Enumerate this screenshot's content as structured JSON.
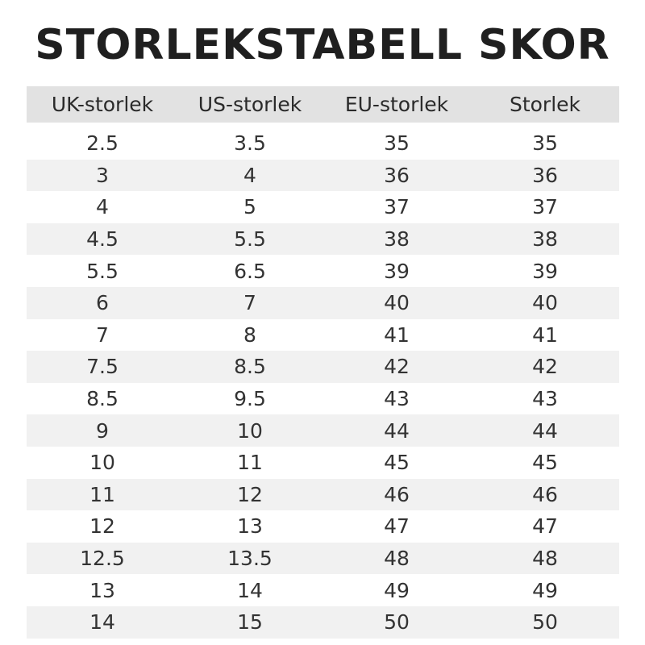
{
  "header": {
    "title": "STORLEKSTABELL SKOR"
  },
  "table": {
    "columns": [
      "UK-storlek",
      "US-storlek",
      "EU-storlek",
      "Storlek"
    ],
    "rows": [
      [
        "2.5",
        "3.5",
        "35",
        "35"
      ],
      [
        "3",
        "4",
        "36",
        "36"
      ],
      [
        "4",
        "5",
        "37",
        "37"
      ],
      [
        "4.5",
        "5.5",
        "38",
        "38"
      ],
      [
        "5.5",
        "6.5",
        "39",
        "39"
      ],
      [
        "6",
        "7",
        "40",
        "40"
      ],
      [
        "7",
        "8",
        "41",
        "41"
      ],
      [
        "7.5",
        "8.5",
        "42",
        "42"
      ],
      [
        "8.5",
        "9.5",
        "43",
        "43"
      ],
      [
        "9",
        "10",
        "44",
        "44"
      ],
      [
        "10",
        "11",
        "45",
        "45"
      ],
      [
        "11",
        "12",
        "46",
        "46"
      ],
      [
        "12",
        "13",
        "47",
        "47"
      ],
      [
        "12.5",
        "13.5",
        "48",
        "48"
      ],
      [
        "13",
        "14",
        "49",
        "49"
      ],
      [
        "14",
        "15",
        "50",
        "50"
      ]
    ]
  }
}
